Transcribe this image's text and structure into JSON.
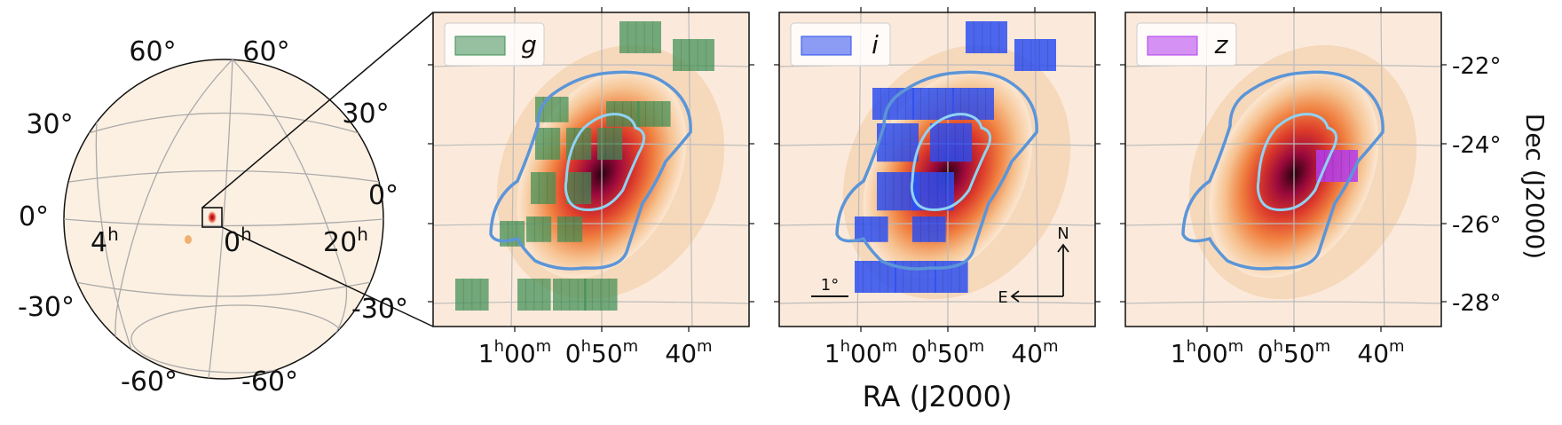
{
  "chart_data": {
    "type": "heatmap",
    "xlabel": "RA (J2000)",
    "ylabel": "Dec (J2000)",
    "x_ticks": [
      {
        "main": "1",
        "sup": "h",
        "tail": "00",
        "sup2": "m"
      },
      {
        "main": "0",
        "sup": "h",
        "tail": "50",
        "sup2": "m"
      },
      {
        "main": "40",
        "sup": "m",
        "tail": "",
        "sup2": ""
      }
    ],
    "y_ticks": [
      "-22°",
      "-24°",
      "-26°",
      "-28°"
    ],
    "globe": {
      "lat_labels_left": [
        "60°",
        "30°",
        "0°",
        "-30°",
        "-60°"
      ],
      "lat_labels_right": [
        "60°",
        "30°",
        "0°",
        "-30°",
        "-60°"
      ],
      "ra_labels": [
        {
          "main": "4",
          "sup": "h"
        },
        {
          "main": "0",
          "sup": "h"
        },
        {
          "main": "20",
          "sup": "h"
        }
      ]
    },
    "panels": [
      {
        "band": "g",
        "color": "#3f8f55"
      },
      {
        "band": "i",
        "color": "#2d4ff0"
      },
      {
        "band": "z",
        "color": "#b23cf0"
      }
    ],
    "scale_bar": "1°",
    "compass": {
      "north": "N",
      "east": "E"
    }
  }
}
